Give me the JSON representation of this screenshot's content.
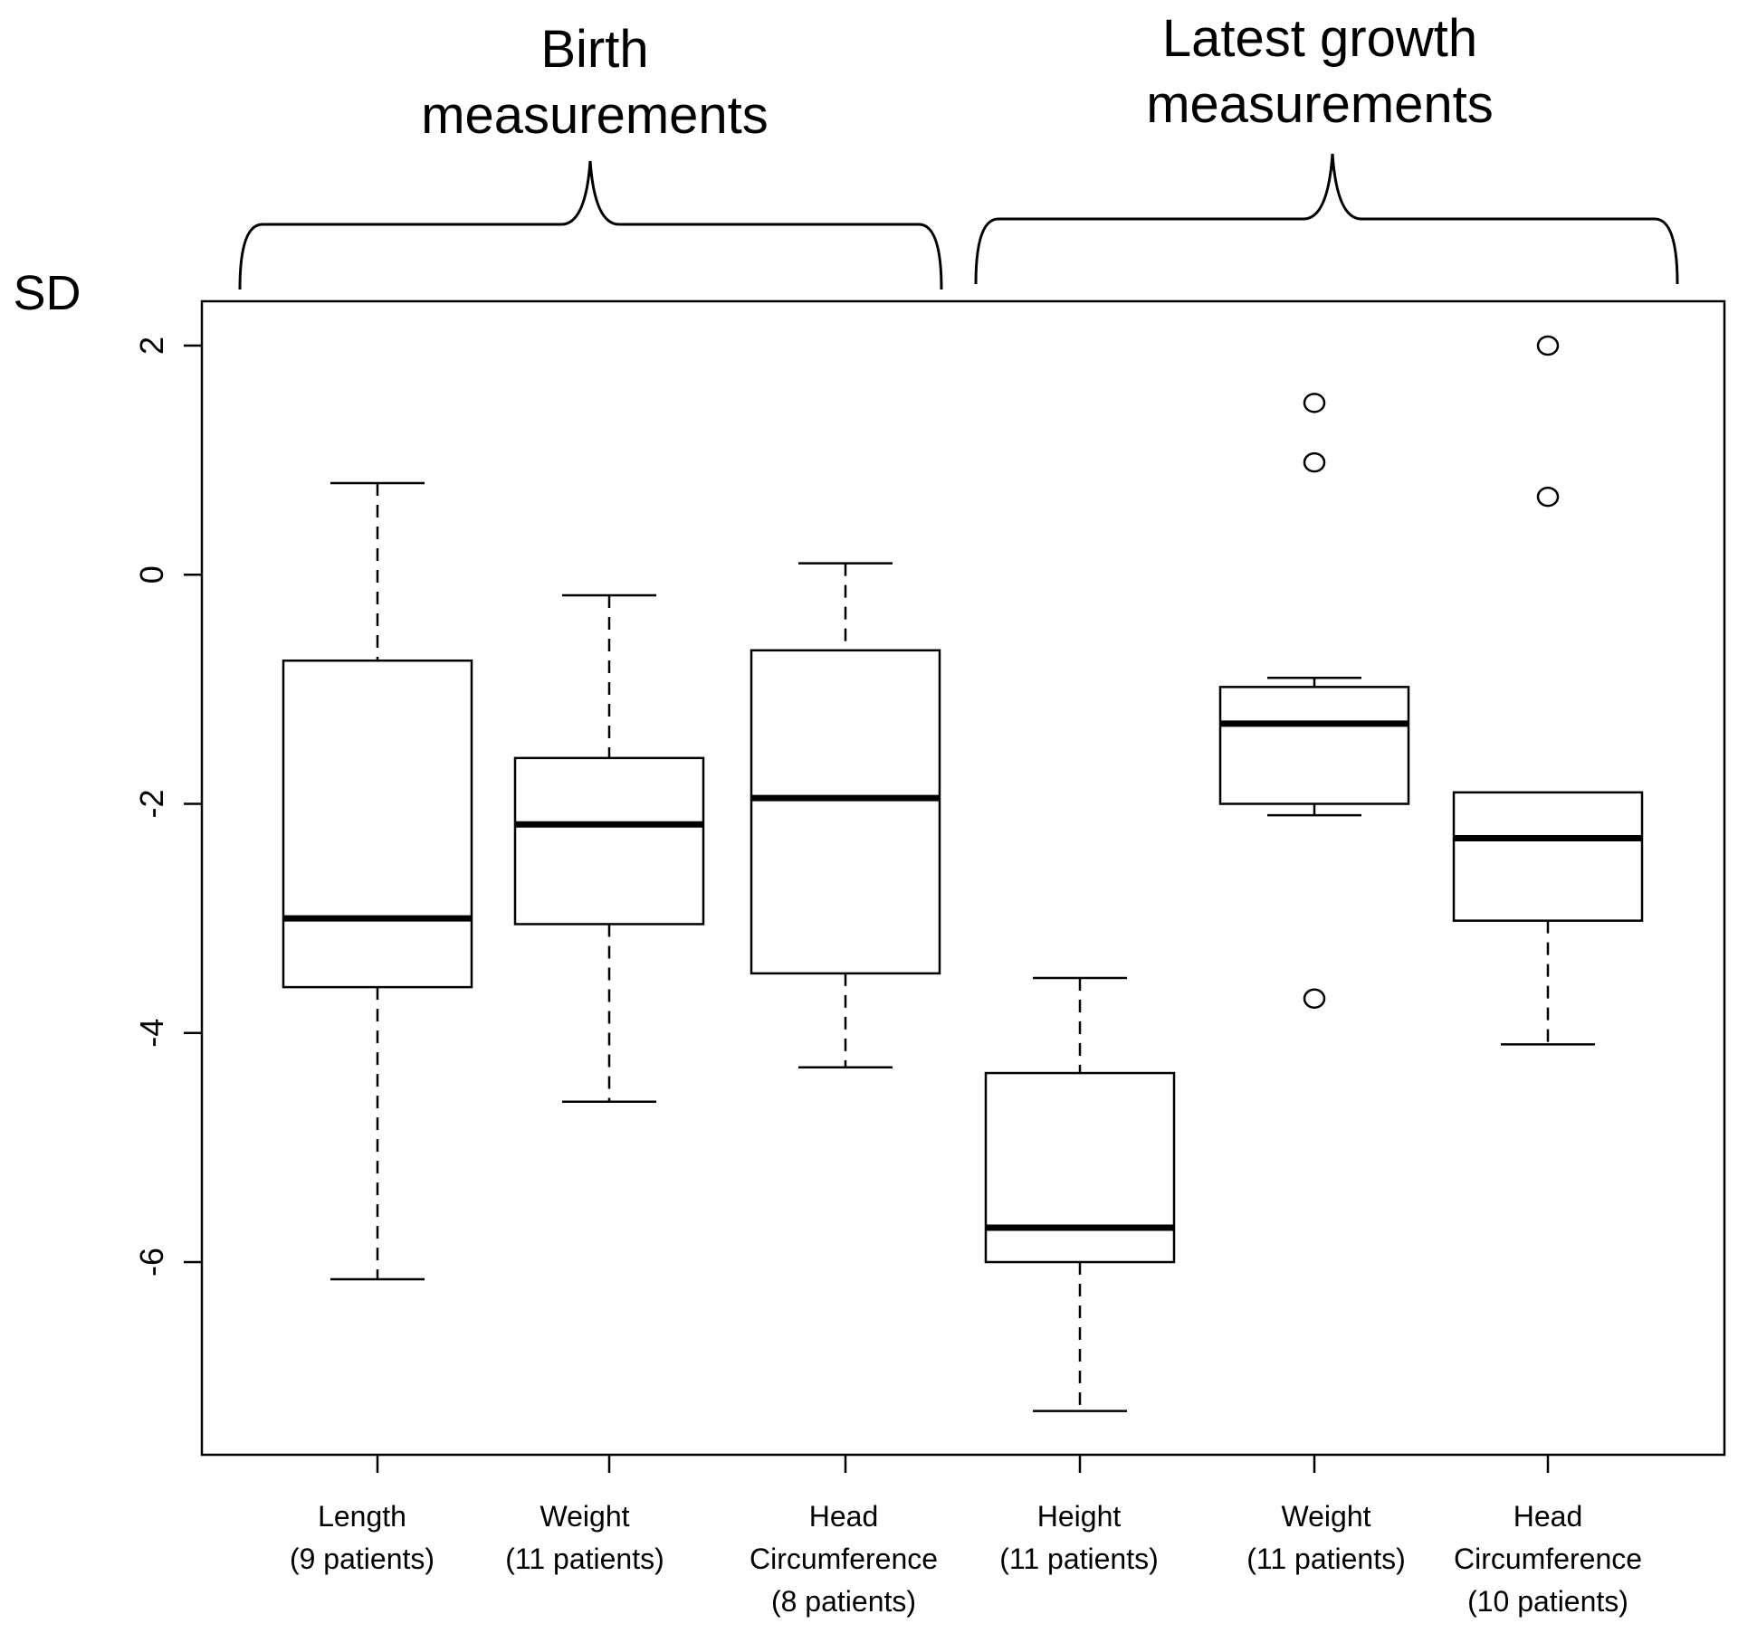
{
  "chart_data": {
    "type": "boxplot",
    "ylabel": "SD",
    "ylim": [
      -7.7,
      2.4
    ],
    "yticks": [
      2,
      0,
      -2,
      -4,
      -6
    ],
    "ytick_labels": [
      "2",
      "0",
      "-2",
      "-4",
      "-6"
    ],
    "groups": [
      {
        "title_lines": [
          "Birth",
          "measurements"
        ]
      },
      {
        "title_lines": [
          "Latest growth",
          "measurements"
        ]
      }
    ],
    "categories": [
      {
        "label_lines": [
          "Length",
          "(9 patients)"
        ]
      },
      {
        "label_lines": [
          "Weight",
          "(11 patients)"
        ]
      },
      {
        "label_lines": [
          "Head",
          "Circumference",
          "(8 patients)"
        ]
      },
      {
        "label_lines": [
          "Height",
          "(11 patients)"
        ]
      },
      {
        "label_lines": [
          "Weight",
          "(11 patients)"
        ]
      },
      {
        "label_lines": [
          "Head",
          "Circumference",
          "(10 patients)"
        ]
      }
    ],
    "boxes": [
      {
        "whisker_low": -6.15,
        "q1": -3.6,
        "median": -3.0,
        "q3": -0.75,
        "whisker_high": 0.8,
        "outliers": []
      },
      {
        "whisker_low": -4.6,
        "q1": -3.05,
        "median": -2.18,
        "q3": -1.6,
        "whisker_high": -0.18,
        "outliers": []
      },
      {
        "whisker_low": -4.3,
        "q1": -3.48,
        "median": -1.95,
        "q3": -0.66,
        "whisker_high": 0.1,
        "outliers": []
      },
      {
        "whisker_low": -7.3,
        "q1": -6.0,
        "median": -5.7,
        "q3": -4.35,
        "whisker_high": -3.52,
        "outliers": []
      },
      {
        "whisker_low": -2.1,
        "q1": -2.0,
        "median": -1.3,
        "q3": -0.98,
        "whisker_high": -0.9,
        "outliers": [
          1.5,
          0.98,
          -3.7
        ]
      },
      {
        "whisker_low": -4.1,
        "q1": -3.02,
        "median": -2.3,
        "q3": -1.9,
        "whisker_high": -1.9,
        "outliers": [
          2.0,
          0.68
        ]
      }
    ]
  }
}
